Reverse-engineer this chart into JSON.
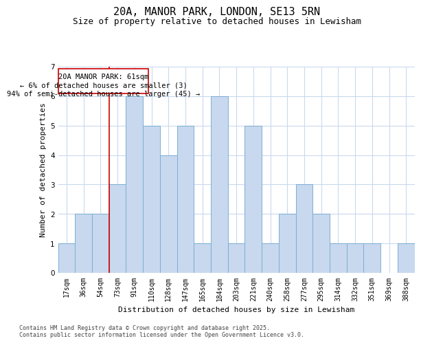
{
  "title": "20A, MANOR PARK, LONDON, SE13 5RN",
  "subtitle": "Size of property relative to detached houses in Lewisham",
  "xlabel": "Distribution of detached houses by size in Lewisham",
  "ylabel": "Number of detached properties",
  "categories": [
    "17sqm",
    "36sqm",
    "54sqm",
    "73sqm",
    "91sqm",
    "110sqm",
    "128sqm",
    "147sqm",
    "165sqm",
    "184sqm",
    "203sqm",
    "221sqm",
    "240sqm",
    "258sqm",
    "277sqm",
    "295sqm",
    "314sqm",
    "332sqm",
    "351sqm",
    "369sqm",
    "388sqm"
  ],
  "values": [
    1,
    2,
    2,
    3,
    6,
    5,
    4,
    5,
    1,
    6,
    1,
    5,
    1,
    2,
    3,
    2,
    1,
    1,
    1,
    0,
    1
  ],
  "bar_color": "#c8d8ee",
  "bar_edge_color": "#7bafd4",
  "ref_line_bin": 2,
  "ref_line_color": "#cc0000",
  "ylim": [
    0,
    7
  ],
  "yticks": [
    0,
    1,
    2,
    3,
    4,
    5,
    6,
    7
  ],
  "annotation_line1": "20A MANOR PARK: 61sqm",
  "annotation_line2": "← 6% of detached houses are smaller (3)",
  "annotation_line3": "94% of semi-detached houses are larger (45) →",
  "annotation_box_color": "#ffffff",
  "annotation_box_edge": "#cc0000",
  "footer_text": "Contains HM Land Registry data © Crown copyright and database right 2025.\nContains public sector information licensed under the Open Government Licence v3.0.",
  "bg_color": "#ffffff",
  "grid_color": "#c9d9ee",
  "title_fontsize": 11,
  "subtitle_fontsize": 9,
  "axis_label_fontsize": 8,
  "tick_fontsize": 7,
  "annotation_fontsize": 7.5,
  "footer_fontsize": 6
}
